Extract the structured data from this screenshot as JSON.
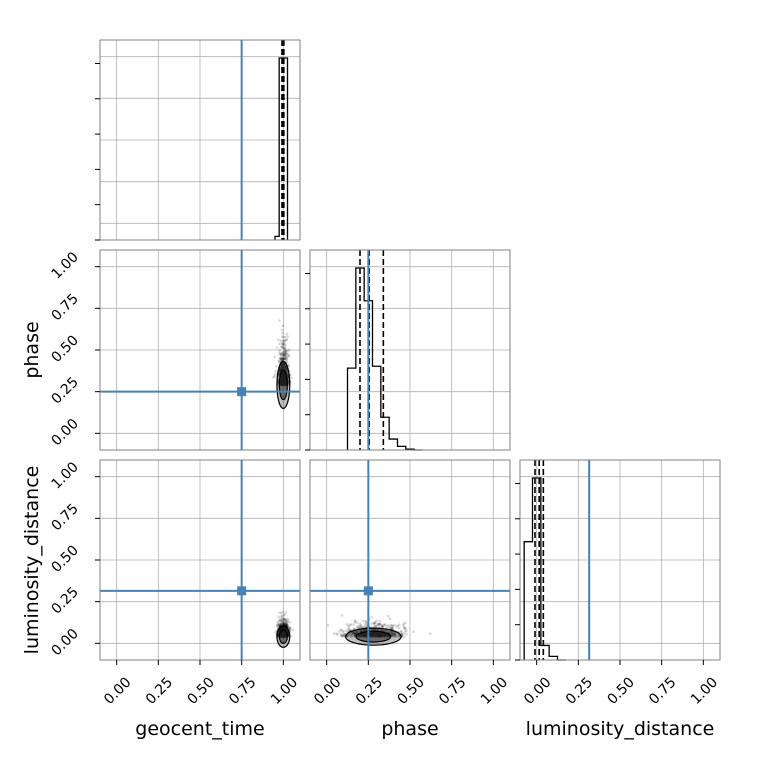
{
  "chart_data": {
    "type": "corner",
    "parameters": [
      "geocent_time",
      "phase",
      "luminosity_distance"
    ],
    "axis_labels": {
      "x": [
        "geocent_time",
        "phase",
        "luminosity_distance"
      ],
      "y": [
        "phase",
        "luminosity_distance"
      ]
    },
    "axis_range": [
      -0.1,
      1.1
    ],
    "ticks": [
      0.0,
      0.25,
      0.5,
      0.75,
      1.0
    ],
    "tick_labels": [
      "0.00",
      "0.25",
      "0.50",
      "0.75",
      "1.00"
    ],
    "grid": true,
    "colors": {
      "truth": "#4682b4",
      "samples": "#000000",
      "grid": "#b0b0b0",
      "spine": "#808080"
    },
    "truths": {
      "geocent_time": 0.75,
      "phase": 0.25,
      "luminosity_distance": 0.315
    },
    "histograms": {
      "geocent_time": {
        "bins": [
          0.95,
          0.975,
          1.0,
          1.025
        ],
        "counts": [
          0.02,
          1.0,
          1.0
        ],
        "quantiles": [
          0.992,
          1.0,
          1.003
        ]
      },
      "phase": {
        "bins": [
          0.125,
          0.175,
          0.225,
          0.275,
          0.325,
          0.375,
          0.425,
          0.475,
          0.525,
          0.575
        ],
        "counts": [
          0.45,
          1.0,
          0.82,
          0.46,
          0.18,
          0.06,
          0.02,
          0.005,
          0.0
        ],
        "quantiles": [
          0.2,
          0.255,
          0.34
        ]
      },
      "luminosity_distance": {
        "bins": [
          -0.075,
          -0.025,
          0.025,
          0.075,
          0.125,
          0.175
        ],
        "counts": [
          0.65,
          1.0,
          0.08,
          0.02,
          0.0
        ],
        "quantiles": [
          -0.01,
          0.015,
          0.04
        ]
      }
    },
    "scatter_2d": [
      {
        "x": "geocent_time",
        "y": "phase",
        "center": [
          1.0,
          0.29
        ],
        "spread": [
          0.015,
          0.11
        ]
      },
      {
        "x": "geocent_time",
        "y": "luminosity_distance",
        "center": [
          1.0,
          0.04
        ],
        "spread": [
          0.015,
          0.05
        ]
      },
      {
        "x": "phase",
        "y": "luminosity_distance",
        "center": [
          0.28,
          0.04
        ],
        "spread": [
          0.08,
          0.04
        ]
      }
    ]
  }
}
